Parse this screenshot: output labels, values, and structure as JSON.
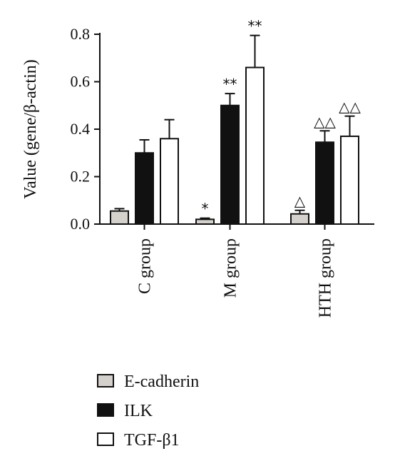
{
  "chart_data": {
    "type": "bar",
    "title": "",
    "xlabel": "",
    "ylabel": "Value (gene/β-actin)",
    "ylim": [
      0,
      0.8
    ],
    "yticks": [
      "0.0",
      "0.2",
      "0.4",
      "0.6",
      "0.8"
    ],
    "yticks_values": [
      0,
      0.2,
      0.4,
      0.6,
      0.8
    ],
    "categories": [
      "C group",
      "M group",
      "HTH group"
    ],
    "series": [
      {
        "name": "E-cadherin",
        "color": "#d4d0cc",
        "values": [
          0.055,
          0.02,
          0.043
        ],
        "errors": [
          0.01,
          0.005,
          0.015
        ],
        "annotations": [
          "",
          "*",
          "△"
        ]
      },
      {
        "name": "ILK",
        "color": "#111111",
        "values": [
          0.3,
          0.5,
          0.345
        ],
        "errors": [
          0.055,
          0.05,
          0.048
        ],
        "annotations": [
          "",
          "**",
          "△△"
        ]
      },
      {
        "name": "TGF-β1",
        "color": "#ffffff",
        "values": [
          0.36,
          0.66,
          0.37
        ],
        "errors": [
          0.08,
          0.135,
          0.085
        ],
        "annotations": [
          "",
          "**",
          "△△"
        ]
      }
    ],
    "grid": false,
    "legend_position": "bottom"
  }
}
